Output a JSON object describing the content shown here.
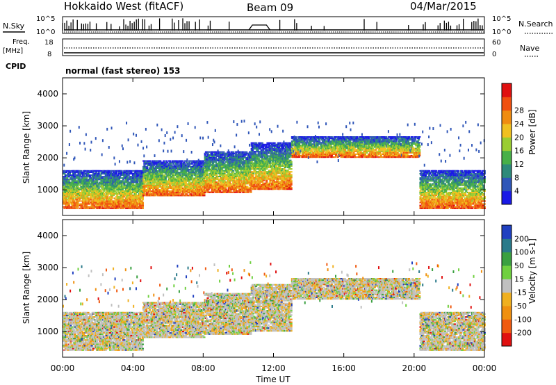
{
  "header": {
    "radar": "Hokkaido West (fitACF)",
    "beam": "Beam 09",
    "date": "04/Mar/2015"
  },
  "top_panels": {
    "nsky_label": "N.Sky",
    "nsearch_label": "N.Search",
    "noise_ticks": [
      "10^5",
      "10^0"
    ],
    "freq_label_line1": "Freq.",
    "freq_label_line2": "[MHz]",
    "freq_ticks": [
      "18",
      "8"
    ],
    "nave_label": "Nave",
    "nave_ticks": [
      "60",
      "0"
    ],
    "cpid_label": "CPID",
    "cpid_text": "normal (fast stereo) 153"
  },
  "x_axis": {
    "label": "Time UT",
    "ticks": [
      "00:00",
      "04:00",
      "08:00",
      "12:00",
      "16:00",
      "20:00",
      "00:00"
    ]
  },
  "panels": [
    {
      "name": "power",
      "ylabel": "Slant Range [km]",
      "yticks": [
        "1000",
        "2000",
        "3000",
        "4000"
      ],
      "colorbar_label": "Power [dB]",
      "colorbar_ticks": [
        "4",
        "8",
        "12",
        "16",
        "20",
        "24",
        "28"
      ],
      "colors": [
        "#1a1ae6",
        "#2f56b8",
        "#2e8a7a",
        "#48b048",
        "#9acd32",
        "#f0c020",
        "#f08c10",
        "#f05010",
        "#e01010"
      ]
    },
    {
      "name": "velocity",
      "ylabel": "Slant Range [km]",
      "yticks": [
        "1000",
        "2000",
        "3000",
        "4000"
      ],
      "colorbar_label": "Velocity [m s-1]",
      "colorbar_ticks": [
        "-200",
        "-100",
        "-50",
        "-15",
        "15",
        "50",
        "100",
        "200"
      ],
      "colors": [
        "#e01010",
        "#f05a10",
        "#f09010",
        "#f0b020",
        "#c0c0c0",
        "#70d040",
        "#3aa040",
        "#2a7a8a",
        "#2040c0"
      ]
    }
  ],
  "chart_data": {
    "type": "heatmap",
    "title": "Hokkaido West (fitACF) Beam 09 04/Mar/2015",
    "xlabel": "Time UT",
    "ylabel": "Slant Range [km]",
    "xlim_hours": [
      0,
      24
    ],
    "ylim_km": [
      200,
      4500
    ],
    "scatter_bands": [
      {
        "t_start": 0,
        "t_end": 4.5,
        "lower_km": 400,
        "upper_km": 1600
      },
      {
        "t_start": 4.5,
        "t_end": 8.0,
        "lower_km": 800,
        "upper_km": 1900
      },
      {
        "t_start": 8.0,
        "t_end": 10.7,
        "lower_km": 900,
        "upper_km": 2200
      },
      {
        "t_start": 10.7,
        "t_end": 13.0,
        "lower_km": 1000,
        "upper_km": 2450
      },
      {
        "t_start": 13.0,
        "t_end": 20.3,
        "lower_km": 2000,
        "upper_km": 2650
      },
      {
        "t_start": 20.3,
        "t_end": 24.0,
        "lower_km": 400,
        "upper_km": 1600
      }
    ]
  }
}
